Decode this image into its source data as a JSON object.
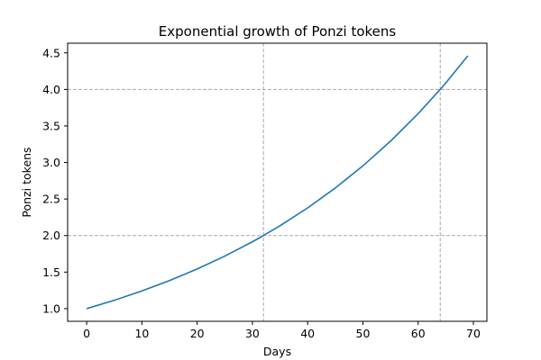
{
  "chart_data": {
    "type": "line",
    "title": "Exponential growth of Ponzi tokens",
    "xlabel": "Days",
    "ylabel": "Ponzi tokens",
    "xlim": [
      -3.45,
      72.45
    ],
    "ylim": [
      0.8267,
      4.6325
    ],
    "xticks": [
      0,
      10,
      20,
      30,
      40,
      50,
      60,
      70
    ],
    "yticks": [
      1.0,
      1.5,
      2.0,
      2.5,
      3.0,
      3.5,
      4.0,
      4.5
    ],
    "xtick_labels": [
      "0",
      "10",
      "20",
      "30",
      "40",
      "50",
      "60",
      "70"
    ],
    "ytick_labels": [
      "1.0",
      "1.5",
      "2.0",
      "2.5",
      "3.0",
      "3.5",
      "4.0",
      "4.5"
    ],
    "grid": false,
    "reference_lines": {
      "vertical_x": [
        32,
        64
      ],
      "horizontal_y": [
        2.0,
        4.0
      ],
      "style": "dashed",
      "color": "#a9a9a9"
    },
    "series": [
      {
        "color": "#1f77b4",
        "x": [
          0,
          5,
          10,
          15,
          20,
          25,
          30,
          32,
          35,
          40,
          45,
          50,
          55,
          60,
          64,
          65,
          69
        ],
        "y": [
          1.0,
          1.1144,
          1.2419,
          1.3839,
          1.5422,
          1.7186,
          1.9152,
          2.0,
          2.1342,
          2.3784,
          2.6504,
          2.9536,
          3.2914,
          3.668,
          4.0,
          4.0875,
          4.46
        ]
      }
    ]
  }
}
